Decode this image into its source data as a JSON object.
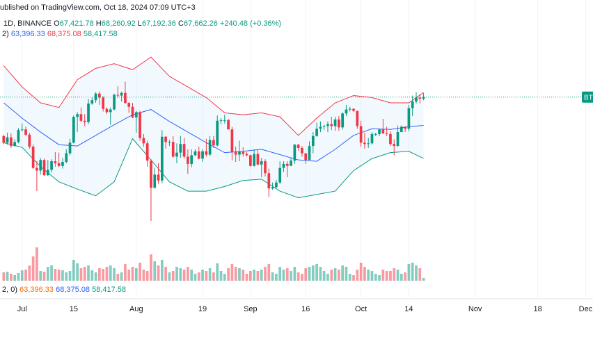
{
  "header": {
    "published": "ublished on TradingView.com, Oct 18, 2024 07:09 UTC+3",
    "symbol": "1D, BINANCE",
    "ohlc": [
      {
        "key": "O",
        "label": "67,421.78"
      },
      {
        "key": "H",
        "label": "68,260.92"
      },
      {
        "key": "L",
        "label": "67,192.36"
      },
      {
        "key": "C",
        "label": "67,662.26"
      }
    ],
    "change": "+240.48 (+0.36%)",
    "bb_params": "2)",
    "bb_values": [
      {
        "label": "63,396.33",
        "color": "#2962ff"
      },
      {
        "label": "68,375.08",
        "color": "#f23645"
      },
      {
        "label": "58,417.58",
        "color": "#089981"
      }
    ]
  },
  "volume_legend": {
    "params": "2, 0)",
    "values": [
      {
        "label": "63,396.33",
        "color": "#ff6d00"
      },
      {
        "label": "68,375.08",
        "color": "#2962ff"
      },
      {
        "label": "58,417.58",
        "color": "#089981"
      }
    ]
  },
  "chart_data": {
    "type": "candlestick",
    "x": [
      "2024-06-26",
      "2024-06-27",
      "2024-06-28",
      "2024-06-29",
      "2024-06-30",
      "2024-07-01",
      "2024-07-02",
      "2024-07-03",
      "2024-07-04",
      "2024-07-05",
      "2024-07-06",
      "2024-07-07",
      "2024-07-08",
      "2024-07-09",
      "2024-07-10",
      "2024-07-11",
      "2024-07-12",
      "2024-07-13",
      "2024-07-14",
      "2024-07-15",
      "2024-07-16",
      "2024-07-17",
      "2024-07-18",
      "2024-07-19",
      "2024-07-20",
      "2024-07-21",
      "2024-07-22",
      "2024-07-23",
      "2024-07-24",
      "2024-07-25",
      "2024-07-26",
      "2024-07-27",
      "2024-07-28",
      "2024-07-29",
      "2024-07-30",
      "2024-07-31",
      "2024-08-01",
      "2024-08-02",
      "2024-08-03",
      "2024-08-04",
      "2024-08-05",
      "2024-08-06",
      "2024-08-07",
      "2024-08-08",
      "2024-08-09",
      "2024-08-10",
      "2024-08-11",
      "2024-08-12",
      "2024-08-13",
      "2024-08-14",
      "2024-08-15",
      "2024-08-16",
      "2024-08-17",
      "2024-08-18",
      "2024-08-19",
      "2024-08-20",
      "2024-08-21",
      "2024-08-22",
      "2024-08-23",
      "2024-08-24",
      "2024-08-25",
      "2024-08-26",
      "2024-08-27",
      "2024-08-28",
      "2024-08-29",
      "2024-08-30",
      "2024-08-31",
      "2024-09-01",
      "2024-09-02",
      "2024-09-03",
      "2024-09-04",
      "2024-09-05",
      "2024-09-06",
      "2024-09-07",
      "2024-09-08",
      "2024-09-09",
      "2024-09-10",
      "2024-09-11",
      "2024-09-12",
      "2024-09-13",
      "2024-09-14",
      "2024-09-15",
      "2024-09-16",
      "2024-09-17",
      "2024-09-18",
      "2024-09-19",
      "2024-09-20",
      "2024-09-21",
      "2024-09-22",
      "2024-09-23",
      "2024-09-24",
      "2024-09-25",
      "2024-09-26",
      "2024-09-27",
      "2024-09-28",
      "2024-09-29",
      "2024-09-30",
      "2024-10-01",
      "2024-10-02",
      "2024-10-03",
      "2024-10-04",
      "2024-10-05",
      "2024-10-06",
      "2024-10-07",
      "2024-10-08",
      "2024-10-09",
      "2024-10-10",
      "2024-10-11",
      "2024-10-12",
      "2024-10-13",
      "2024-10-14",
      "2024-10-15",
      "2024-10-16",
      "2024-10-17",
      "2024-10-18"
    ],
    "open": [
      61800,
      60800,
      61600,
      60300,
      60900,
      62700,
      62800,
      62000,
      60200,
      57000,
      56600,
      58200,
      55900,
      56700,
      58000,
      57700,
      57300,
      57900,
      59200,
      60800,
      64700,
      65100,
      64100,
      63900,
      66700,
      67200,
      68200,
      67600,
      65900,
      65400,
      65800,
      68000,
      67900,
      68300,
      66800,
      66200,
      64600,
      65400,
      61500,
      60700,
      58100,
      54000,
      56000,
      55100,
      61700,
      60900,
      60900,
      58700,
      59300,
      60600,
      58700,
      57600,
      58900,
      59500,
      58400,
      59500,
      59000,
      61200,
      60400,
      64100,
      64200,
      64200,
      62800,
      59400,
      59000,
      59400,
      59100,
      58900,
      57300,
      59100,
      57500,
      58000,
      56200,
      53900,
      54100,
      54800,
      57000,
      57600,
      57300,
      58100,
      60500,
      60000,
      59200,
      58200,
      60300,
      61800,
      62900,
      63200,
      63300,
      63600,
      63300,
      64300,
      63100,
      65200,
      65800,
      65900,
      65600,
      63300,
      60800,
      60600,
      60700,
      62100,
      62100,
      62800,
      62200,
      62100,
      60600,
      60300,
      62400,
      63200,
      62900,
      66000,
      67000,
      67600,
      67421.78
    ],
    "high": [
      62000,
      62300,
      62200,
      61300,
      63000,
      63700,
      63200,
      62300,
      60500,
      58000,
      58500,
      58400,
      58200,
      58300,
      59400,
      59300,
      58500,
      59800,
      61400,
      64900,
      65400,
      66100,
      65100,
      67400,
      67600,
      68400,
      68500,
      67800,
      66100,
      66100,
      68200,
      69300,
      68500,
      70000,
      66900,
      66800,
      65600,
      65600,
      62100,
      61100,
      58300,
      57000,
      57700,
      62700,
      61800,
      61200,
      61800,
      60700,
      61800,
      61500,
      59800,
      59800,
      59800,
      60200,
      59800,
      61400,
      61800,
      61800,
      64900,
      64500,
      65000,
      64400,
      63200,
      60200,
      61100,
      60100,
      59400,
      59000,
      59800,
      59800,
      58500,
      58300,
      56900,
      54800,
      55200,
      58000,
      58000,
      58000,
      58500,
      60600,
      60600,
      60300,
      59200,
      61000,
      62400,
      63800,
      64000,
      63500,
      64000,
      64700,
      64700,
      64800,
      65400,
      66500,
      66200,
      66000,
      65600,
      64100,
      62300,
      61500,
      62400,
      62300,
      62900,
      64400,
      63200,
      62500,
      61300,
      63400,
      63400,
      63300,
      66500,
      67900,
      68400,
      68100,
      68260.92
    ],
    "low": [
      60600,
      60500,
      60000,
      60200,
      60700,
      62500,
      61800,
      59900,
      56800,
      53500,
      56000,
      55800,
      55800,
      56300,
      57200,
      57100,
      56900,
      57700,
      58900,
      60700,
      62400,
      63900,
      63300,
      63600,
      66500,
      66800,
      66500,
      65500,
      65100,
      63500,
      65700,
      67600,
      67000,
      66600,
      65300,
      64500,
      62300,
      61100,
      60200,
      57200,
      49000,
      53900,
      54600,
      54700,
      59900,
      60300,
      58500,
      57700,
      58500,
      58400,
      56100,
      57100,
      58800,
      58300,
      57900,
      58700,
      58800,
      60000,
      60200,
      63600,
      63700,
      62800,
      58100,
      57900,
      58000,
      58700,
      58700,
      57200,
      57200,
      57400,
      55600,
      55700,
      52600,
      53700,
      53900,
      54600,
      56400,
      55600,
      57400,
      57600,
      59600,
      58700,
      57600,
      58200,
      59200,
      61700,
      62400,
      62700,
      62400,
      62700,
      62600,
      62600,
      62800,
      64800,
      65500,
      65400,
      62900,
      60200,
      59900,
      60000,
      60500,
      61800,
      61800,
      62100,
      61800,
      60300,
      58900,
      60200,
      62400,
      62400,
      62500,
      64800,
      66700,
      66700,
      67192.36
    ],
    "close": [
      60800,
      61600,
      60300,
      60900,
      62700,
      62800,
      62000,
      60200,
      57000,
      56600,
      58200,
      55900,
      56700,
      58000,
      57700,
      57300,
      57900,
      59200,
      60800,
      64700,
      65100,
      64100,
      63900,
      66700,
      67200,
      68200,
      67600,
      65900,
      65400,
      65800,
      68000,
      67900,
      68300,
      66800,
      66200,
      64600,
      65400,
      61500,
      60700,
      58100,
      54000,
      56000,
      55100,
      61700,
      60900,
      60900,
      58700,
      59300,
      60600,
      58700,
      57600,
      58900,
      59500,
      58400,
      59500,
      59000,
      61200,
      60400,
      64100,
      64200,
      64200,
      62800,
      59400,
      59000,
      59400,
      59100,
      58900,
      57300,
      59100,
      57500,
      58000,
      56200,
      53900,
      54100,
      54800,
      57000,
      57600,
      57300,
      58100,
      60500,
      60000,
      59200,
      58200,
      60300,
      61800,
      62900,
      63200,
      63300,
      63600,
      63300,
      64300,
      63100,
      65200,
      65800,
      65900,
      65600,
      63300,
      60800,
      60600,
      60700,
      62100,
      62100,
      62800,
      62200,
      62100,
      60600,
      60300,
      62400,
      63200,
      62900,
      66000,
      67000,
      67600,
      67421.78,
      67662.26
    ],
    "up_color": "#089981",
    "down_color": "#f23645",
    "volume": {
      "values": [
        12,
        13,
        10,
        8,
        11,
        15,
        16,
        22,
        35,
        48,
        14,
        13,
        20,
        22,
        17,
        16,
        15,
        12,
        14,
        30,
        25,
        18,
        20,
        22,
        15,
        12,
        18,
        17,
        20,
        22,
        18,
        10,
        12,
        24,
        16,
        20,
        18,
        26,
        16,
        14,
        38,
        28,
        22,
        30,
        20,
        12,
        14,
        20,
        18,
        16,
        20,
        16,
        10,
        12,
        16,
        14,
        18,
        12,
        25,
        14,
        10,
        18,
        24,
        20,
        18,
        16,
        10,
        14,
        16,
        14,
        16,
        20,
        24,
        12,
        10,
        20,
        16,
        18,
        14,
        20,
        12,
        10,
        18,
        20,
        22,
        24,
        20,
        14,
        10,
        16,
        18,
        16,
        22,
        20,
        10,
        8,
        16,
        26,
        20,
        16,
        14,
        10,
        8,
        16,
        14,
        14,
        18,
        16,
        10,
        12,
        24,
        26,
        22,
        18,
        4
      ],
      "ylim": [
        0,
        60
      ]
    },
    "bands": {
      "x": [
        "2024-06-26",
        "2024-07-01",
        "2024-07-06",
        "2024-07-11",
        "2024-07-16",
        "2024-07-21",
        "2024-07-26",
        "2024-07-31",
        "2024-08-05",
        "2024-08-10",
        "2024-08-15",
        "2024-08-20",
        "2024-08-25",
        "2024-08-30",
        "2024-09-04",
        "2024-09-09",
        "2024-09-14",
        "2024-09-19",
        "2024-09-24",
        "2024-09-29",
        "2024-10-04",
        "2024-10-09",
        "2024-10-14",
        "2024-10-18"
      ],
      "series": [
        {
          "color": "#f23645",
          "values": [
            72400,
            69200,
            66800,
            66100,
            70300,
            72000,
            72700,
            71800,
            73700,
            70800,
            69200,
            67600,
            65300,
            65000,
            65300,
            64700,
            61900,
            64500,
            66800,
            67900,
            67600,
            66800,
            66800,
            68375.08
          ]
        },
        {
          "color": "#2962ff",
          "values": [
            66800,
            64500,
            62400,
            60500,
            60300,
            61900,
            63500,
            65000,
            65800,
            64000,
            62400,
            60800,
            59300,
            59500,
            59800,
            59000,
            58200,
            58000,
            59800,
            61900,
            62900,
            62800,
            63200,
            63396.33
          ]
        },
        {
          "color": "#089981",
          "values": [
            60800,
            60100,
            57200,
            54900,
            53800,
            52800,
            54900,
            61400,
            58200,
            54900,
            53500,
            53500,
            54200,
            55100,
            55300,
            53500,
            52500,
            53000,
            53500,
            56600,
            58400,
            59300,
            59500,
            58417.58
          ]
        }
      ],
      "fill": "#2196f3"
    },
    "last_label": "BT",
    "ylim": [
      40000,
      82300
    ],
    "xlim": [
      "2024-06-25",
      "2024-12-03"
    ],
    "xticks": [
      {
        "value": "2024-07-01",
        "label": "Jul"
      },
      {
        "value": "2024-07-15",
        "label": "15"
      },
      {
        "value": "2024-08-01",
        "label": "Aug"
      },
      {
        "value": "2024-08-19",
        "label": "19"
      },
      {
        "value": "2024-09-01",
        "label": "Sep"
      },
      {
        "value": "2024-09-16",
        "label": "16"
      },
      {
        "value": "2024-10-01",
        "label": "Oct"
      },
      {
        "value": "2024-10-14",
        "label": "14"
      },
      {
        "value": "2024-11-01",
        "label": "Nov"
      },
      {
        "value": "2024-11-18",
        "label": "18"
      },
      {
        "value": "2024-12-01",
        "label": "Dec"
      }
    ],
    "grid": true
  }
}
